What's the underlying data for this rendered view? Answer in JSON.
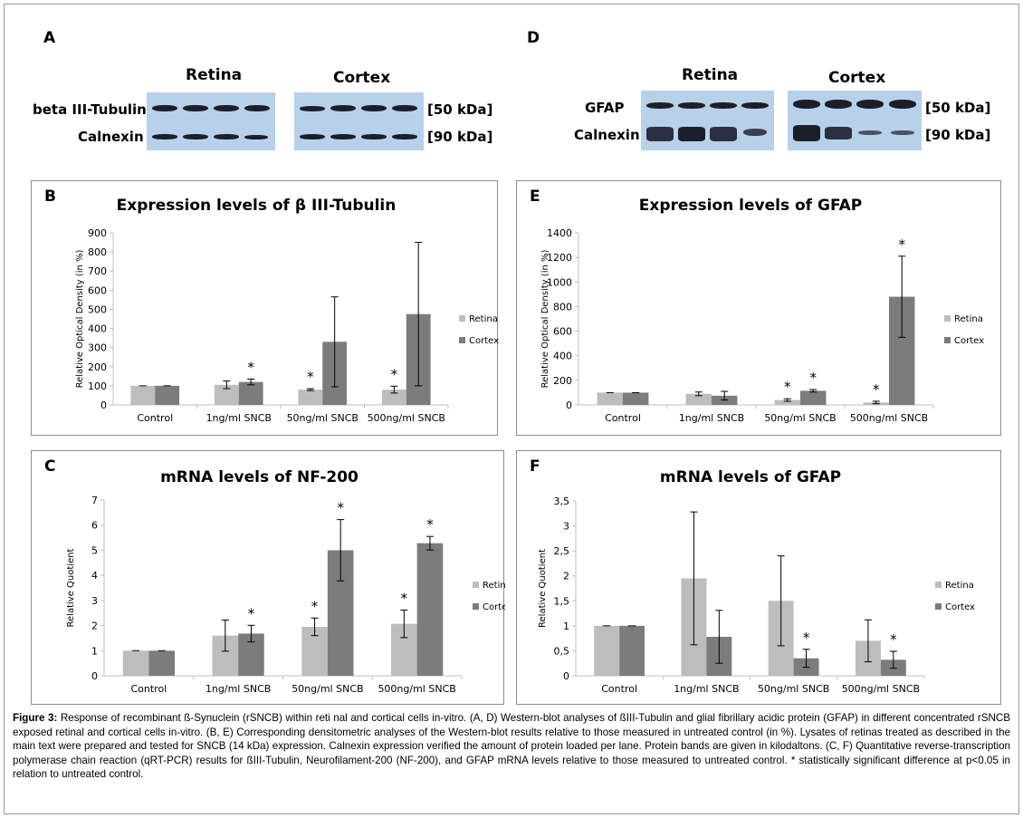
{
  "western_blots": {
    "A": {
      "letter": "A",
      "group_left": "Retina",
      "group_right": "Cortex",
      "row1_label": "beta III-Tubulin",
      "row1_size": "[50 kDa]",
      "row2_label": "Calnexin",
      "row2_size": "[90 kDa]"
    },
    "D": {
      "letter": "D",
      "group_left": "Retina",
      "group_right": "Cortex",
      "row1_label": "GFAP",
      "row1_size": "[50 kDa]",
      "row2_label": "Calnexin",
      "row2_size": "[90 kDa]"
    }
  },
  "colors": {
    "retina": "#bdbdbd",
    "cortex": "#7c7c7c",
    "blot_bg": "#b8d1ea",
    "band": "#1a1f2a"
  },
  "chart_data": [
    {
      "id": "B",
      "letter": "B",
      "type": "bar",
      "title": "Expression levels of β III-Tubulin",
      "ylabel": "Relative Optical Density (in %)",
      "categories": [
        "Control",
        "1ng/ml SNCB",
        "50ng/ml SNCB",
        "500ng/ml SNCB"
      ],
      "ylim": [
        0,
        900
      ],
      "yticks": [
        "0",
        "100",
        "200",
        "300",
        "400",
        "500",
        "600",
        "700",
        "800",
        "900"
      ],
      "series": [
        {
          "name": "Retina",
          "values": [
            100,
            105,
            80,
            80
          ],
          "errors": [
            0,
            20,
            5,
            18
          ],
          "signif": [
            false,
            false,
            true,
            true
          ]
        },
        {
          "name": "Cortex",
          "values": [
            100,
            120,
            330,
            475
          ],
          "errors": [
            0,
            15,
            235,
            375
          ],
          "signif": [
            false,
            true,
            false,
            false
          ]
        }
      ],
      "legend_position": "right",
      "signif_mark": "*"
    },
    {
      "id": "E",
      "letter": "E",
      "type": "bar",
      "title": "Expression levels of GFAP",
      "ylabel": "Relative Optical Density (in %)",
      "categories": [
        "Control",
        "1ng/ml SNCB",
        "50ng/ml SNCB",
        "500ng/ml SNCB"
      ],
      "ylim": [
        0,
        1400
      ],
      "yticks": [
        "0",
        "200",
        "400",
        "600",
        "800",
        "1000",
        "1200",
        "1400"
      ],
      "series": [
        {
          "name": "Retina",
          "values": [
            100,
            90,
            40,
            20
          ],
          "errors": [
            0,
            15,
            10,
            10
          ],
          "signif": [
            false,
            false,
            true,
            true
          ]
        },
        {
          "name": "Cortex",
          "values": [
            100,
            75,
            115,
            880
          ],
          "errors": [
            0,
            35,
            10,
            330
          ],
          "signif": [
            false,
            false,
            true,
            true
          ]
        }
      ],
      "legend_position": "right",
      "signif_mark": "*"
    },
    {
      "id": "C",
      "letter": "C",
      "type": "bar",
      "title": "mRNA levels of NF-200",
      "ylabel": "Relative Quotient",
      "categories": [
        "Control",
        "1ng/ml SNCB",
        "50ng/ml SNCB",
        "500ng/ml SNCB"
      ],
      "ylim": [
        0,
        7
      ],
      "yticks": [
        "0",
        "1",
        "2",
        "3",
        "4",
        "5",
        "6",
        "7"
      ],
      "series": [
        {
          "name": "Retina",
          "values": [
            1,
            1.6,
            1.95,
            2.07
          ],
          "errors": [
            0,
            0.62,
            0.35,
            0.55
          ],
          "signif": [
            false,
            false,
            true,
            true
          ]
        },
        {
          "name": "Cortex",
          "values": [
            1,
            1.68,
            5.0,
            5.28
          ],
          "errors": [
            0,
            0.33,
            1.22,
            0.27
          ],
          "signif": [
            false,
            true,
            true,
            true
          ]
        }
      ],
      "legend_position": "right",
      "signif_mark": "*"
    },
    {
      "id": "F",
      "letter": "F",
      "type": "bar",
      "title": "mRNA levels of GFAP",
      "ylabel": "Relative Quotient",
      "categories": [
        "Control",
        "1ng/ml SNCB",
        "50ng/ml SNCB",
        "500ng/ml SNCB"
      ],
      "ylim": [
        0,
        3.5
      ],
      "yticks": [
        "0",
        "0,5",
        "1",
        "1,5",
        "2",
        "2,5",
        "3",
        "3,5"
      ],
      "series": [
        {
          "name": "Retina",
          "values": [
            1,
            1.95,
            1.5,
            0.7
          ],
          "errors": [
            0,
            1.33,
            0.9,
            0.42
          ],
          "signif": [
            false,
            false,
            false,
            false
          ]
        },
        {
          "name": "Cortex",
          "values": [
            1,
            0.78,
            0.35,
            0.32
          ],
          "errors": [
            0,
            0.53,
            0.18,
            0.17
          ],
          "signif": [
            false,
            false,
            true,
            true
          ]
        }
      ],
      "legend_position": "right",
      "signif_mark": "*"
    }
  ],
  "caption": {
    "label": "Figure 3:",
    "text": " Response of recombinant ß-Synuclein (rSNCB) within reti nal and cortical cells in-vitro. (A, D) Western-blot analyses of ßIII-Tubulin and glial fibrillary acidic protein (GFAP) in different concentrated rSNCB exposed retinal and cortical cells in-vitro.  (B, E) Corresponding densitometric analyses of the Western-blot results relative to those measured in untreated control (in %). Lysates of retinas treated as described in the main text were prepared and tested for SNCB (14 kDa) expression. Calnexin expression verified the amount of protein loaded per lane. Protein bands are given in kilodaltons. (C, F) Quantitative reverse-transcription polymerase chain reaction (qRT-PCR) results for ßIII-Tubulin, Neurofilament-200 (NF-200), and GFAP mRNA levels relative to those measured to untreated control. * statistically significant difference at p<0.05 in relation to untreated control."
  }
}
